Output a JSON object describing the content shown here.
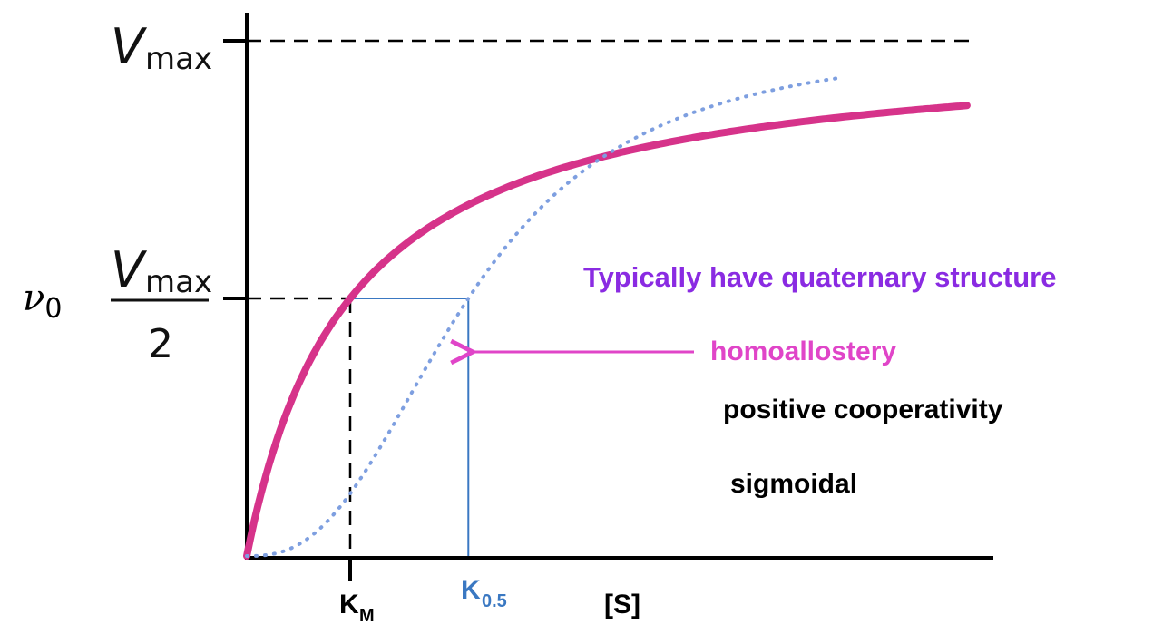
{
  "chart_data": {
    "type": "line",
    "title": "",
    "ylabel": "ν0",
    "xlabel": "[S]",
    "xlim": [
      0,
      10
    ],
    "ylim": [
      0,
      1
    ],
    "grid": false,
    "legend": "none",
    "y_ticks": [
      {
        "value": 1.0,
        "var": "V",
        "sub": "max",
        "fraction_denominator": ""
      },
      {
        "value": 0.5,
        "var": "V",
        "sub": "max",
        "fraction_denominator": "2"
      }
    ],
    "x_ticks": [
      {
        "value": 1.4,
        "main": "K",
        "sub": "M",
        "color": "#000000"
      },
      {
        "value": 3.0,
        "main": "K",
        "sub": "0.5",
        "color": "#3a78c2"
      }
    ],
    "series": [
      {
        "style": "solid",
        "color": "#d6338a",
        "kind": "hyperbolic",
        "K": 1.4,
        "x": [
          0,
          0.1,
          0.25,
          0.5,
          0.75,
          1,
          1.4,
          2,
          3,
          4,
          5,
          6,
          7,
          8,
          9,
          9.8
        ],
        "y": [
          0,
          0.067,
          0.152,
          0.263,
          0.349,
          0.417,
          0.5,
          0.588,
          0.682,
          0.741,
          0.781,
          0.811,
          0.833,
          0.851,
          0.865,
          0.875
        ]
      },
      {
        "style": "dotted",
        "color": "#7e9fe0",
        "kind": "sigmoidal",
        "K": 3.0,
        "x": [
          0,
          0.5,
          1,
          1.5,
          2,
          2.5,
          3,
          3.5,
          4,
          5,
          6,
          7,
          8
        ],
        "y": [
          0,
          0.03,
          0.09,
          0.18,
          0.3,
          0.41,
          0.5,
          0.6,
          0.68,
          0.77,
          0.83,
          0.87,
          0.9
        ]
      }
    ],
    "reference_lines": [
      {
        "type": "horizontal",
        "y": 1.0,
        "style": "dashed",
        "color": "#000000",
        "x_to": 9.8
      },
      {
        "type": "horizontal",
        "y": 0.5,
        "style": "dashed",
        "color": "#000000",
        "x_to": 1.4
      },
      {
        "type": "vertical",
        "x": 1.4,
        "style": "dashed",
        "color": "#000000"
      },
      {
        "type": "horizontal",
        "y": 0.5,
        "style": "solid",
        "color": "#3a78c2",
        "x_from": 1.4,
        "x_to": 3.0
      },
      {
        "type": "vertical",
        "x": 3.0,
        "style": "solid",
        "color": "#3a78c2"
      }
    ],
    "annotations": [
      {
        "text": "Typically have quaternary structure",
        "color": "#8a2be2"
      },
      {
        "text": "homoallostery",
        "color": "#e045c8",
        "arrow_to_x": 3.0
      },
      {
        "text": "positive cooperativity",
        "color": "#000000"
      },
      {
        "text": "sigmoidal",
        "color": "#000000"
      }
    ]
  }
}
